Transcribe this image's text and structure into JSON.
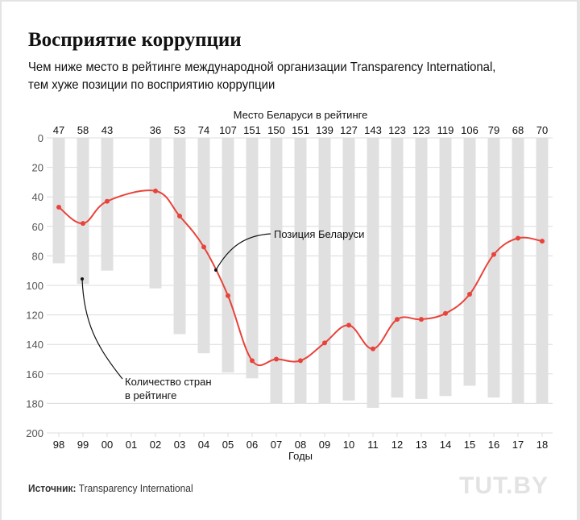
{
  "header": {
    "title": "Восприятие коррупции",
    "subtitle_line1": "Чем ниже место в рейтинге международной организации Transparency International,",
    "subtitle_line2": "тем хуже позиции по восприятию коррупции"
  },
  "footer": {
    "source_label": "Источник:",
    "source_value": "Transparency International",
    "logo": "TUT.BY"
  },
  "colors": {
    "line": "#e8433a",
    "bars": "#e0e0e0",
    "grid": "#dcdcdc",
    "text": "#111111",
    "axis_text": "#555555"
  },
  "chart_data": {
    "type": "bar+line",
    "title": "Восприятие коррупции",
    "top_axis_title": "Место Беларуси в рейтинге",
    "xlabel": "Годы",
    "ylabel": "",
    "ylim": [
      200,
      0
    ],
    "y_inverted": true,
    "y_ticks": [
      0,
      20,
      40,
      60,
      80,
      100,
      120,
      140,
      160,
      180,
      200
    ],
    "grid": true,
    "categories": [
      "98",
      "99",
      "00",
      "01",
      "02",
      "03",
      "04",
      "05",
      "06",
      "07",
      "08",
      "09",
      "10",
      "11",
      "12",
      "13",
      "14",
      "15",
      "16",
      "17",
      "18"
    ],
    "series": [
      {
        "name": "Количество стран в рейтинге",
        "type": "bar",
        "values": [
          85,
          99,
          90,
          null,
          102,
          133,
          146,
          159,
          163,
          180,
          180,
          180,
          178,
          183,
          176,
          177,
          175,
          168,
          176,
          180,
          180
        ]
      },
      {
        "name": "Позиция Беларуси",
        "type": "line",
        "values": [
          47,
          58,
          43,
          null,
          36,
          53,
          74,
          107,
          151,
          150,
          151,
          139,
          127,
          143,
          123,
          123,
          119,
          106,
          79,
          68,
          70
        ]
      }
    ],
    "top_labels": [
      "47",
      "58",
      "43",
      "",
      "36",
      "53",
      "74",
      "107",
      "151",
      "150",
      "151",
      "139",
      "127",
      "143",
      "123",
      "123",
      "119",
      "106",
      "79",
      "68",
      "70"
    ],
    "annotations": [
      {
        "text": "Позиция Беларуси",
        "target_series": "Позиция Беларуси"
      },
      {
        "text_line1": "Количество стран",
        "text_line2": "в рейтинге",
        "target_series": "Количество стран в рейтинге"
      }
    ]
  }
}
